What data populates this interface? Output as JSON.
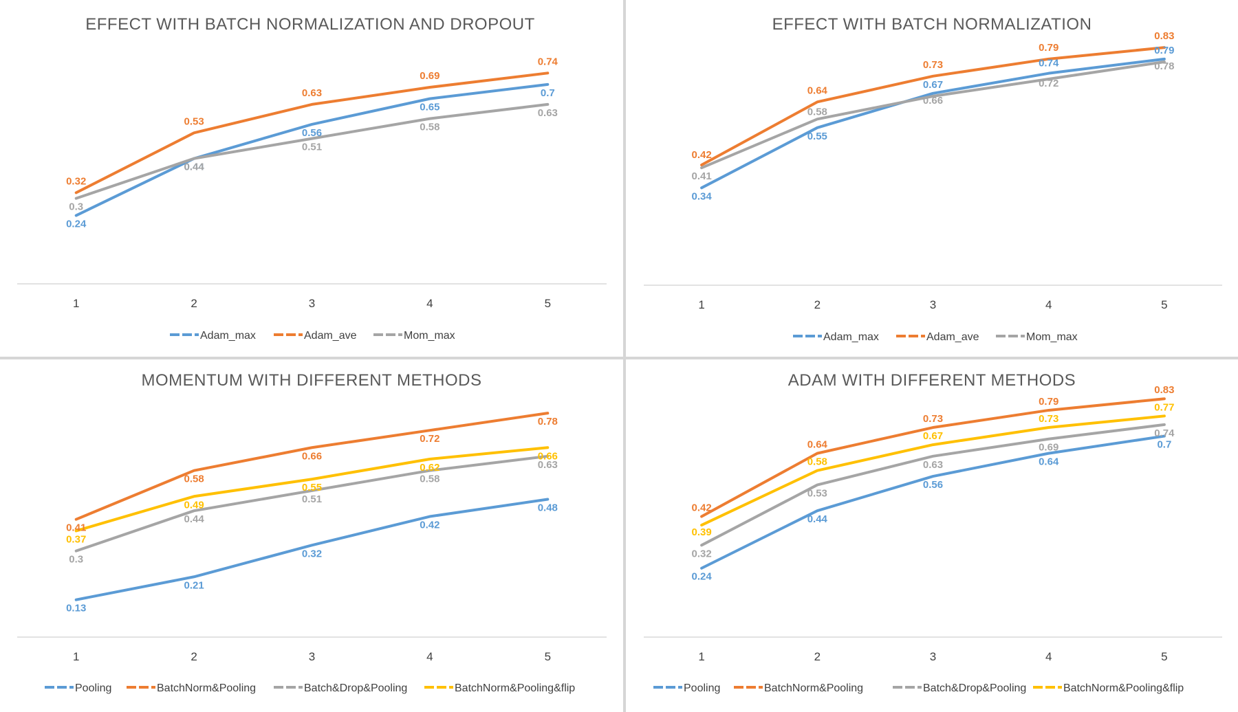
{
  "chart_data": [
    {
      "type": "line",
      "title": "EFFECT WITH BATCH NORMALIZATION AND DROPOUT",
      "categories": [
        "1",
        "2",
        "3",
        "4",
        "5"
      ],
      "ylim": [
        0.0,
        0.9
      ],
      "legend_position": "bottom",
      "grid": false,
      "series": [
        {
          "name": "Adam_max",
          "color": "#5B9BD5",
          "values": [
            0.24,
            0.44,
            0.56,
            0.65,
            0.7
          ]
        },
        {
          "name": "Adam_ave",
          "color": "#ED7D31",
          "values": [
            0.32,
            0.53,
            0.63,
            0.69,
            0.74
          ]
        },
        {
          "name": "Mom_max",
          "color": "#A5A5A5",
          "values": [
            0.3,
            0.44,
            0.51,
            0.58,
            0.63
          ]
        }
      ]
    },
    {
      "type": "line",
      "title": "EFFECT WITH BATCH NORMALIZATION",
      "categories": [
        "1",
        "2",
        "3",
        "4",
        "5"
      ],
      "ylim": [
        0.0,
        0.9
      ],
      "legend_position": "bottom",
      "grid": false,
      "series": [
        {
          "name": "Adam_max",
          "color": "#5B9BD5",
          "values": [
            0.34,
            0.55,
            0.67,
            0.74,
            0.79
          ]
        },
        {
          "name": "Adam_ave",
          "color": "#ED7D31",
          "values": [
            0.42,
            0.64,
            0.73,
            0.79,
            0.83
          ]
        },
        {
          "name": "Mom_max",
          "color": "#A5A5A5",
          "values": [
            0.41,
            0.58,
            0.66,
            0.72,
            0.78
          ]
        }
      ]
    },
    {
      "type": "line",
      "title": "MOMENTUM WITH DIFFERENT METHODS",
      "categories": [
        "1",
        "2",
        "3",
        "4",
        "5"
      ],
      "ylim": [
        0.0,
        0.9
      ],
      "legend_position": "bottom",
      "grid": false,
      "series": [
        {
          "name": "Pooling",
          "color": "#5B9BD5",
          "values": [
            0.13,
            0.21,
            0.32,
            0.42,
            0.48
          ]
        },
        {
          "name": "BatchNorm&Pooling",
          "color": "#ED7D31",
          "values": [
            0.41,
            0.58,
            0.66,
            0.72,
            0.78
          ]
        },
        {
          "name": "Batch&Drop&Pooling",
          "color": "#A5A5A5",
          "values": [
            0.3,
            0.44,
            0.51,
            0.58,
            0.63
          ]
        },
        {
          "name": "BatchNorm&Pooling&flip",
          "color": "#FFC000",
          "values": [
            0.37,
            0.49,
            0.55,
            0.62,
            0.66
          ]
        }
      ]
    },
    {
      "type": "line",
      "title": "ADAM WITH DIFFERENT METHODS",
      "categories": [
        "1",
        "2",
        "3",
        "4",
        "5"
      ],
      "ylim": [
        0.0,
        0.9
      ],
      "legend_position": "bottom",
      "grid": false,
      "series": [
        {
          "name": "Pooling",
          "color": "#5B9BD5",
          "values": [
            0.24,
            0.44,
            0.56,
            0.64,
            0.7
          ]
        },
        {
          "name": "BatchNorm&Pooling",
          "color": "#ED7D31",
          "values": [
            0.42,
            0.64,
            0.73,
            0.79,
            0.83
          ]
        },
        {
          "name": "Batch&Drop&Pooling",
          "color": "#A5A5A5",
          "values": [
            0.32,
            0.53,
            0.63,
            0.69,
            0.74
          ]
        },
        {
          "name": "BatchNorm&Pooling&flip",
          "color": "#FFC000",
          "values": [
            0.39,
            0.58,
            0.67,
            0.73,
            0.77
          ]
        }
      ]
    }
  ]
}
